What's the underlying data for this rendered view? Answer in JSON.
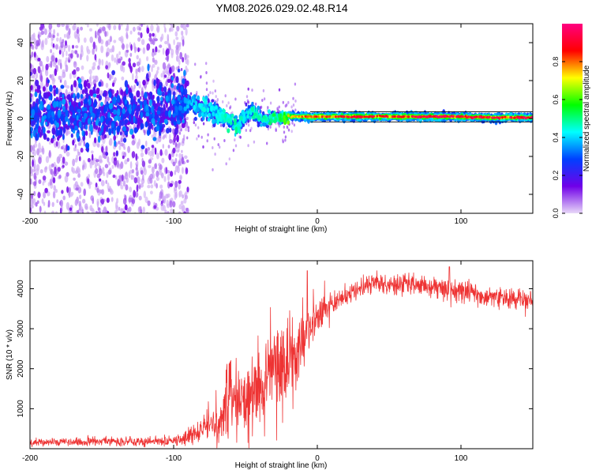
{
  "figure": {
    "title": "YM08.2026.029.02.48.R14"
  },
  "chart_data": [
    {
      "type": "heatmap",
      "xlabel": "Height of straight line (km)",
      "ylabel": "Frequency (Hz)",
      "xlim": [
        -200,
        150
      ],
      "ylim": [
        -50,
        50
      ],
      "xticks": [
        -200,
        -100,
        0,
        100
      ],
      "yticks": [
        -40,
        -20,
        0,
        20,
        40
      ],
      "grid": false,
      "colorbar": {
        "label": "Normalized spectral amplitude",
        "range": [
          0.0,
          1.0
        ],
        "ticks": [
          0.0,
          0.2,
          0.4,
          0.6,
          0.8
        ],
        "tick_labels": [
          "0.0",
          "0.2",
          "0.4",
          "0.6",
          "0.8"
        ],
        "colormap_stops": [
          "#e8d8f8",
          "#7000e8",
          "#0040ff",
          "#00ffff",
          "#00ff00",
          "#ffff00",
          "#ff0000",
          "#ff0080"
        ]
      },
      "description_of_content": "Broad noisy scatter below -90 km; signal converges toward ~0 Hz and becomes a narrow high-amplitude line from about -20 km upward.",
      "ridge": {
        "x": [
          -200,
          -150,
          -100,
          -90,
          -80,
          -70,
          -60,
          -55,
          -50,
          -45,
          -40,
          -35,
          -30,
          -25,
          -20,
          -10,
          0,
          25,
          50,
          75,
          100,
          125,
          150
        ],
        "center_hz": [
          3,
          2,
          5,
          8,
          6,
          3,
          -2,
          -4,
          2,
          4,
          0,
          -1,
          1,
          0,
          1,
          1,
          1,
          1,
          1,
          1,
          1,
          0.5,
          0.5
        ],
        "peak_amplitude": [
          0.15,
          0.15,
          0.3,
          0.4,
          0.45,
          0.45,
          0.5,
          0.5,
          0.45,
          0.5,
          0.5,
          0.5,
          0.55,
          0.55,
          0.75,
          0.8,
          0.85,
          0.9,
          0.9,
          0.95,
          0.95,
          0.95,
          0.95
        ]
      }
    },
    {
      "type": "line",
      "xlabel": "Height of straight line (km)",
      "ylabel": "SNR (10 * v/v)",
      "xlim": [
        -200,
        150
      ],
      "ylim": [
        0,
        4700
      ],
      "xticks": [
        -200,
        -100,
        0,
        100
      ],
      "yticks": [
        1000,
        2000,
        3000,
        4000
      ],
      "grid": false,
      "series": [
        {
          "name": "SNR",
          "color": "#ee3333",
          "x": [
            -200,
            -150,
            -120,
            -100,
            -90,
            -80,
            -70,
            -65,
            -60,
            -50,
            -40,
            -30,
            -20,
            -15,
            -10,
            -5,
            0,
            10,
            20,
            30,
            40,
            60,
            80,
            100,
            120,
            150
          ],
          "y": [
            150,
            180,
            180,
            200,
            300,
            500,
            700,
            900,
            1100,
            1300,
            1500,
            2000,
            2200,
            2400,
            2800,
            3100,
            3300,
            3600,
            3850,
            4050,
            4150,
            4100,
            4050,
            3950,
            3800,
            3700
          ],
          "noise": [
            90,
            100,
            100,
            110,
            200,
            300,
            500,
            600,
            700,
            800,
            900,
            1000,
            900,
            800,
            700,
            550,
            450,
            350,
            260,
            220,
            220,
            230,
            260,
            260,
            230,
            170
          ]
        }
      ],
      "annotations": []
    }
  ]
}
